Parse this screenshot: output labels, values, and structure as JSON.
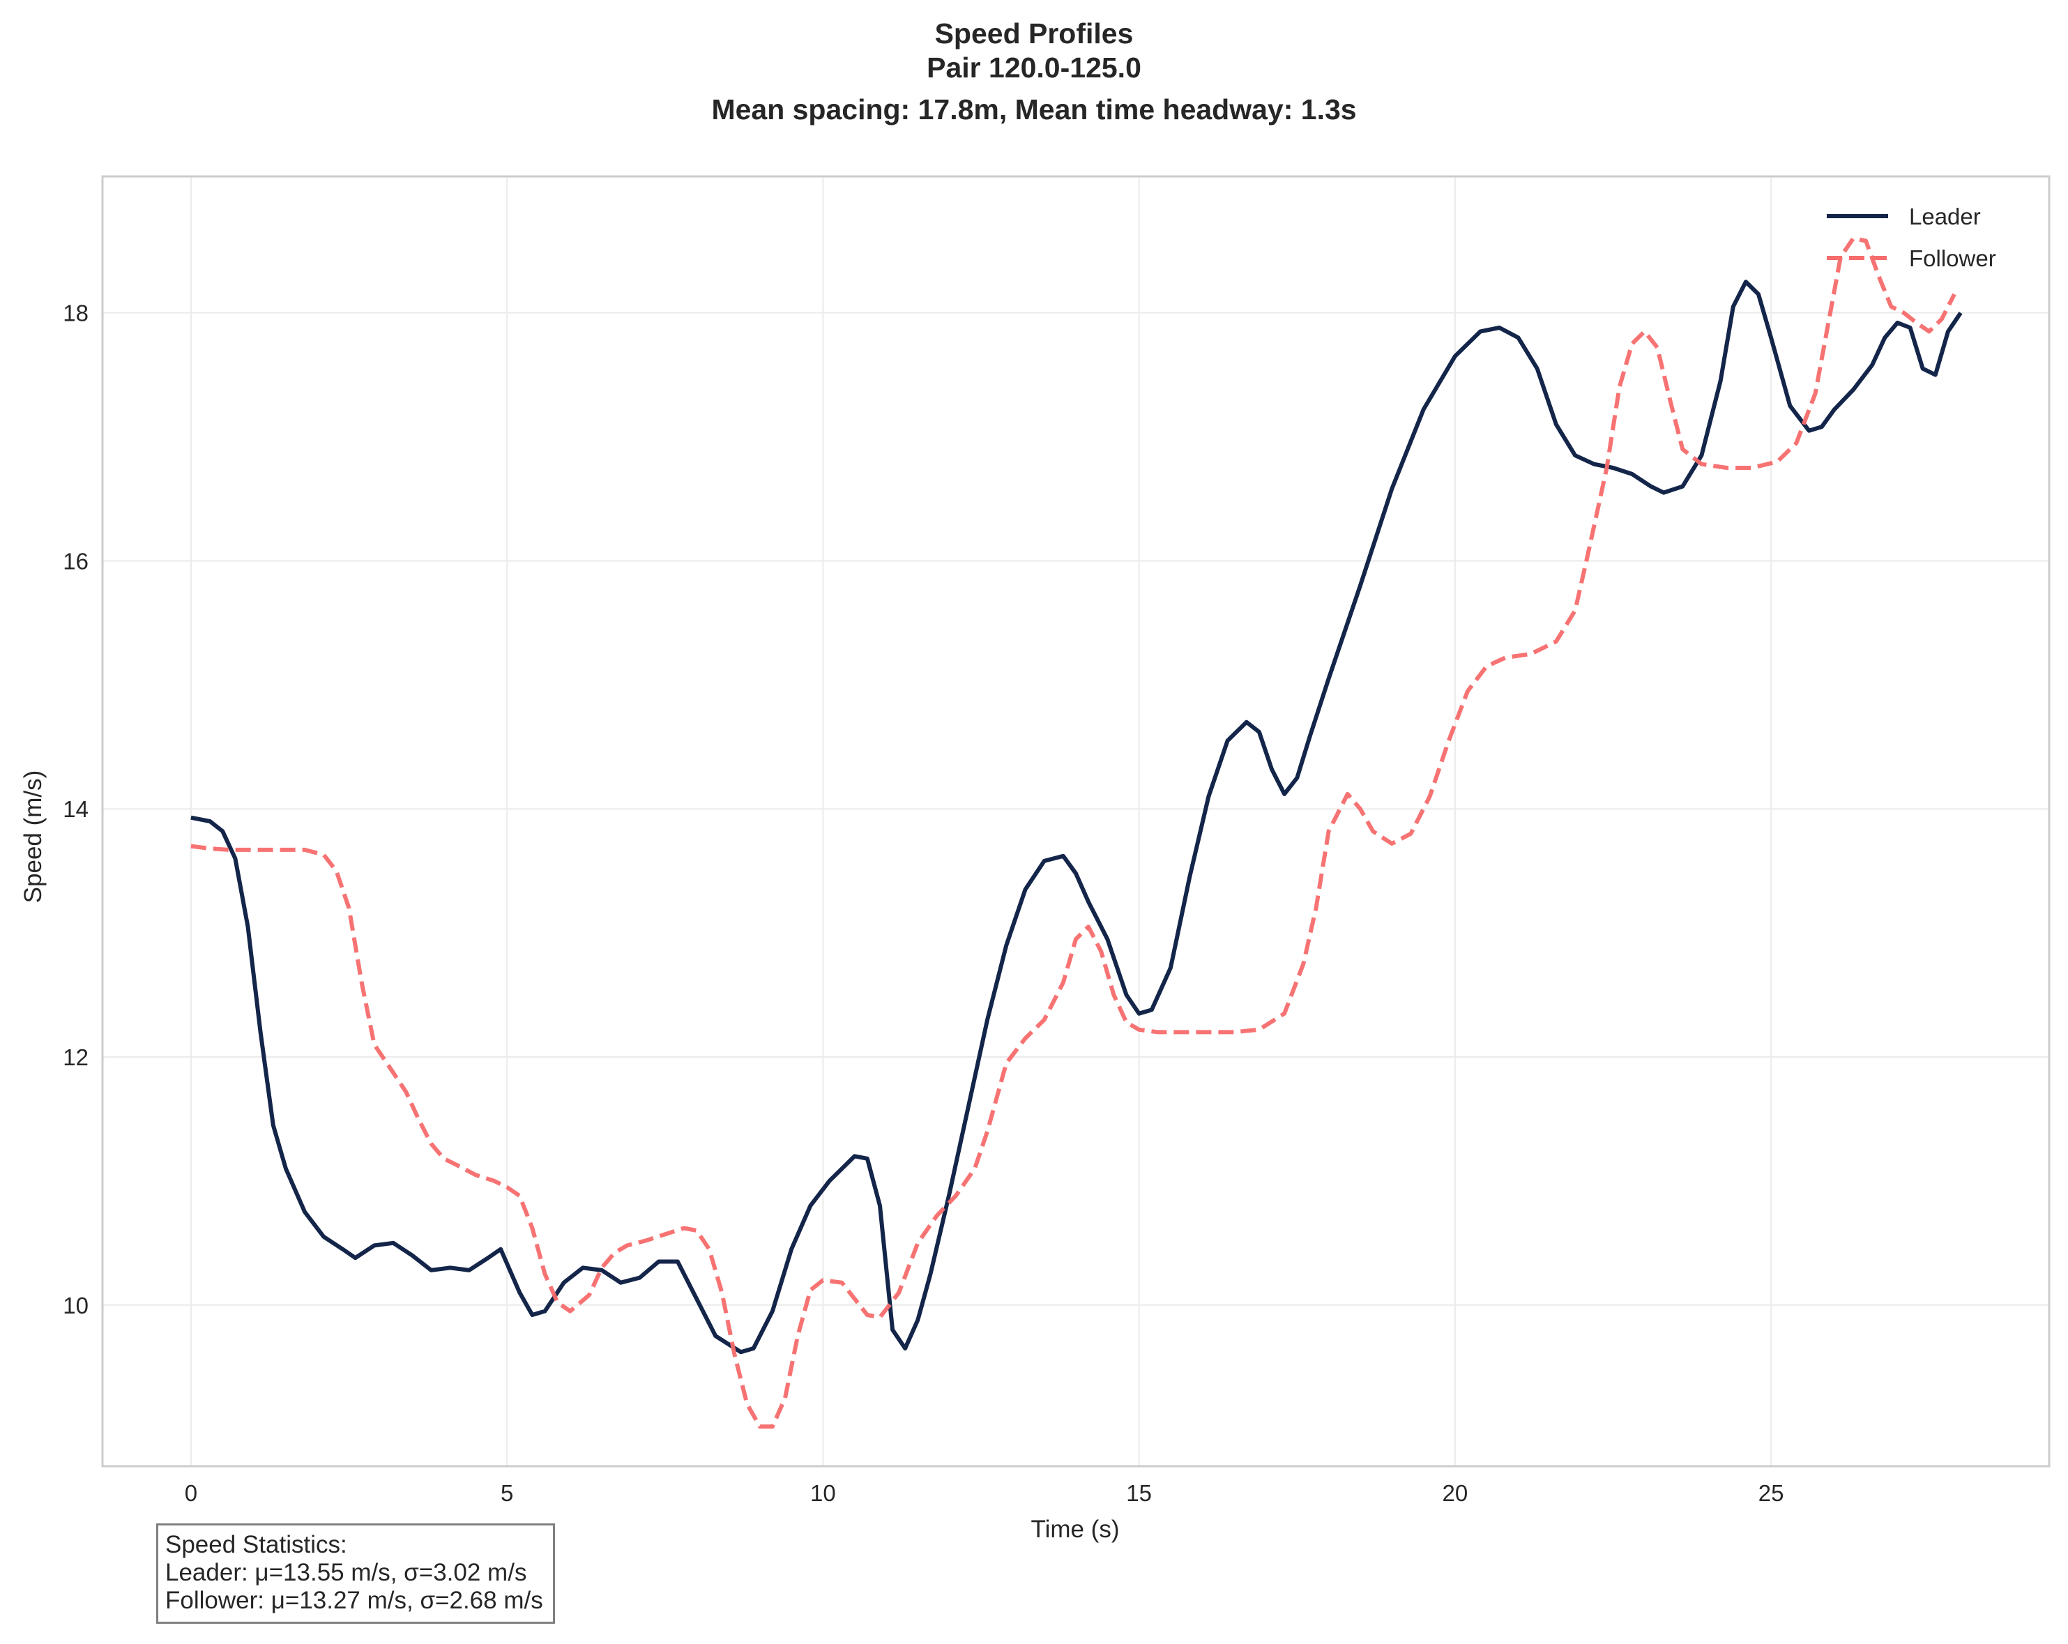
{
  "chart_data": {
    "type": "line",
    "title": [
      "Speed Profiles",
      "Pair 120.0-125.0",
      "Mean spacing: 17.8m, Mean time headway: 1.3s"
    ],
    "xlabel": "Time (s)",
    "ylabel": "Speed (m/s)",
    "xlim": [
      -1.4,
      29.4
    ],
    "ylim": [
      8.7,
      19.1
    ],
    "xticks": [
      0,
      5,
      10,
      15,
      20,
      25
    ],
    "yticks": [
      10,
      12,
      14,
      16,
      18
    ],
    "grid": true,
    "legend": "top-right",
    "series": [
      {
        "name": "Leader",
        "color": "#14254a",
        "style": "solid",
        "x": [
          0,
          0.3,
          0.5,
          0.7,
          0.9,
          1.1,
          1.3,
          1.5,
          1.8,
          2.1,
          2.4,
          2.6,
          2.9,
          3.2,
          3.5,
          3.8,
          4.1,
          4.4,
          4.7,
          4.9,
          5.2,
          5.4,
          5.6,
          5.9,
          6.2,
          6.5,
          6.8,
          7.1,
          7.4,
          7.7,
          8.0,
          8.3,
          8.7,
          8.9,
          9.2,
          9.5,
          9.8,
          10.1,
          10.3,
          10.5,
          10.7,
          10.9,
          11.1,
          11.3,
          11.5,
          11.7,
          12.0,
          12.3,
          12.6,
          12.9,
          13.2,
          13.5,
          13.8,
          14.0,
          14.2,
          14.5,
          14.8,
          15.0,
          15.2,
          15.5,
          15.8,
          16.1,
          16.4,
          16.7,
          16.9,
          17.1,
          17.3,
          17.5,
          17.7,
          18.0,
          18.5,
          19.0,
          19.5,
          20.0,
          20.4,
          20.7,
          21.0,
          21.3,
          21.6,
          21.9,
          22.2,
          22.5,
          22.8,
          23.1,
          23.3,
          23.6,
          23.9,
          24.2,
          24.4,
          24.6,
          24.8,
          25.0,
          25.3,
          25.6,
          25.8,
          26.0,
          26.3,
          26.6,
          26.8,
          27.0,
          27.2,
          27.4,
          27.6,
          27.8,
          28.0
        ],
        "y": [
          13.93,
          13.9,
          13.82,
          13.6,
          13.05,
          12.2,
          11.45,
          11.1,
          10.75,
          10.55,
          10.45,
          10.38,
          10.48,
          10.5,
          10.4,
          10.28,
          10.3,
          10.28,
          10.38,
          10.45,
          10.1,
          9.92,
          9.95,
          10.18,
          10.3,
          10.28,
          10.18,
          10.22,
          10.35,
          10.35,
          10.05,
          9.75,
          9.62,
          9.65,
          9.95,
          10.45,
          10.8,
          11.0,
          11.1,
          11.2,
          11.18,
          10.8,
          9.8,
          9.65,
          9.88,
          10.25,
          10.9,
          11.6,
          12.3,
          12.9,
          13.35,
          13.58,
          13.62,
          13.48,
          13.25,
          12.95,
          12.5,
          12.35,
          12.38,
          12.72,
          13.45,
          14.1,
          14.55,
          14.7,
          14.62,
          14.32,
          14.12,
          14.25,
          14.58,
          15.05,
          15.8,
          16.58,
          17.22,
          17.65,
          17.85,
          17.88,
          17.8,
          17.55,
          17.1,
          16.85,
          16.78,
          16.75,
          16.7,
          16.6,
          16.55,
          16.6,
          16.85,
          17.45,
          18.05,
          18.25,
          18.15,
          17.8,
          17.25,
          17.05,
          17.08,
          17.22,
          17.38,
          17.58,
          17.8,
          17.92,
          17.88,
          17.55,
          17.5,
          17.85,
          18.0
        ]
      },
      {
        "name": "Follower",
        "color": "#f76c6c",
        "style": "dashed",
        "x": [
          0,
          0.3,
          0.6,
          1.0,
          1.4,
          1.8,
          2.1,
          2.3,
          2.5,
          2.7,
          2.9,
          3.1,
          3.4,
          3.6,
          3.8,
          4.0,
          4.2,
          4.5,
          4.8,
          5.0,
          5.2,
          5.4,
          5.6,
          5.8,
          6.0,
          6.3,
          6.5,
          6.7,
          6.9,
          7.2,
          7.5,
          7.8,
          8.0,
          8.2,
          8.4,
          8.6,
          8.8,
          9.0,
          9.2,
          9.4,
          9.6,
          9.8,
          10.0,
          10.3,
          10.5,
          10.7,
          10.9,
          11.2,
          11.5,
          11.8,
          12.1,
          12.4,
          12.6,
          12.9,
          13.2,
          13.5,
          13.8,
          14.0,
          14.2,
          14.4,
          14.6,
          14.8,
          15.0,
          15.3,
          15.7,
          16.1,
          16.5,
          16.9,
          17.3,
          17.6,
          17.8,
          18.0,
          18.3,
          18.5,
          18.7,
          19.0,
          19.3,
          19.6,
          19.9,
          20.2,
          20.5,
          20.8,
          21.2,
          21.6,
          21.9,
          22.1,
          22.4,
          22.6,
          22.8,
          23.0,
          23.2,
          23.4,
          23.6,
          23.9,
          24.3,
          24.7,
          25.1,
          25.4,
          25.7,
          25.9,
          26.1,
          26.3,
          26.5,
          26.7,
          26.9,
          27.1,
          27.3,
          27.5,
          27.7,
          27.9
        ],
        "y": [
          13.7,
          13.68,
          13.67,
          13.67,
          13.67,
          13.67,
          13.63,
          13.5,
          13.2,
          12.6,
          12.1,
          11.95,
          11.72,
          11.5,
          11.3,
          11.18,
          11.13,
          11.05,
          11.0,
          10.95,
          10.88,
          10.62,
          10.25,
          10.02,
          9.95,
          10.08,
          10.3,
          10.42,
          10.48,
          10.52,
          10.57,
          10.62,
          10.6,
          10.45,
          10.1,
          9.6,
          9.2,
          9.02,
          9.02,
          9.25,
          9.75,
          10.12,
          10.2,
          10.18,
          10.05,
          9.92,
          9.9,
          10.1,
          10.5,
          10.72,
          10.88,
          11.1,
          11.4,
          11.95,
          12.15,
          12.3,
          12.6,
          12.95,
          13.05,
          12.85,
          12.5,
          12.28,
          12.22,
          12.2,
          12.2,
          12.2,
          12.2,
          12.22,
          12.35,
          12.75,
          13.2,
          13.82,
          14.12,
          14.0,
          13.82,
          13.72,
          13.8,
          14.1,
          14.55,
          14.95,
          15.15,
          15.22,
          15.25,
          15.35,
          15.6,
          16.05,
          16.75,
          17.4,
          17.75,
          17.85,
          17.72,
          17.3,
          16.9,
          16.78,
          16.75,
          16.75,
          16.8,
          16.95,
          17.35,
          17.9,
          18.45,
          18.6,
          18.58,
          18.3,
          18.05,
          18.0,
          17.92,
          17.85,
          17.95,
          18.15
        ]
      }
    ]
  },
  "stats_box": {
    "line1": "Speed Statistics:",
    "line2": "Leader: μ=13.55 m/s, σ=3.02 m/s",
    "line3": "Follower: μ=13.27 m/s, σ=2.68 m/s"
  }
}
